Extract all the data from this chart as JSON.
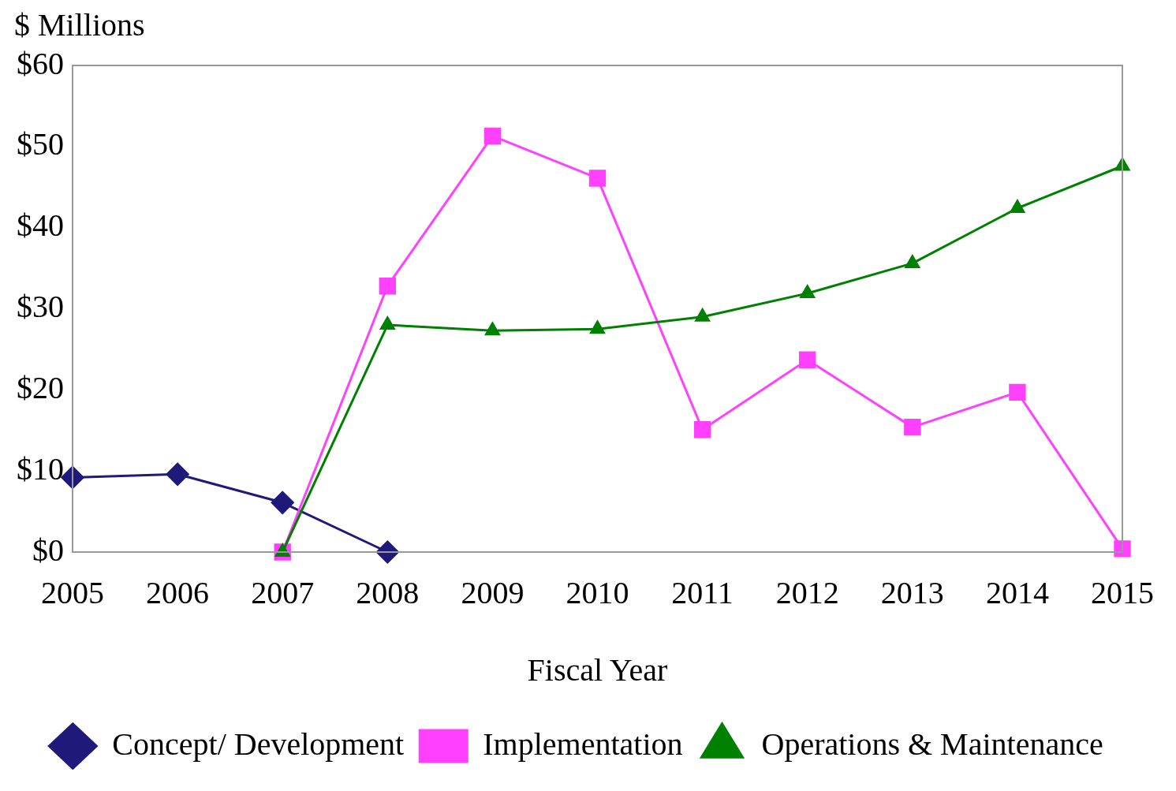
{
  "chart_data": {
    "type": "line",
    "ylabel": "$ Millions",
    "xlabel": "Fiscal Year",
    "categories": [
      "2005",
      "2006",
      "2007",
      "2008",
      "2009",
      "2010",
      "2011",
      "2012",
      "2013",
      "2014",
      "2015"
    ],
    "series": [
      {
        "name": "Concept/ Development",
        "color": "#1f1a7a",
        "marker": "diamond",
        "values": [
          9.2,
          9.6,
          6.1,
          0,
          null,
          null,
          null,
          null,
          null,
          null,
          null
        ]
      },
      {
        "name": "Implementation",
        "color": "#ff40ff",
        "marker": "square",
        "values": [
          null,
          null,
          0,
          32.8,
          51.3,
          46.1,
          15.1,
          23.7,
          15.4,
          19.7,
          0.4
        ]
      },
      {
        "name": "Operations & Maintenance",
        "color": "#008000",
        "marker": "triangle",
        "values": [
          null,
          null,
          0,
          28.0,
          27.3,
          27.5,
          29.0,
          31.9,
          35.6,
          42.4,
          47.6
        ]
      }
    ],
    "ylim": [
      0,
      60
    ],
    "yticks": [
      {
        "value": 0,
        "label": "$0"
      },
      {
        "value": 10,
        "label": "$10"
      },
      {
        "value": 20,
        "label": "$20"
      },
      {
        "value": 30,
        "label": "$30"
      },
      {
        "value": 40,
        "label": "$40"
      },
      {
        "value": 50,
        "label": "$50"
      },
      {
        "value": 60,
        "label": "$60"
      }
    ],
    "grid": false,
    "legend": "bottom",
    "line_style": "solid"
  }
}
